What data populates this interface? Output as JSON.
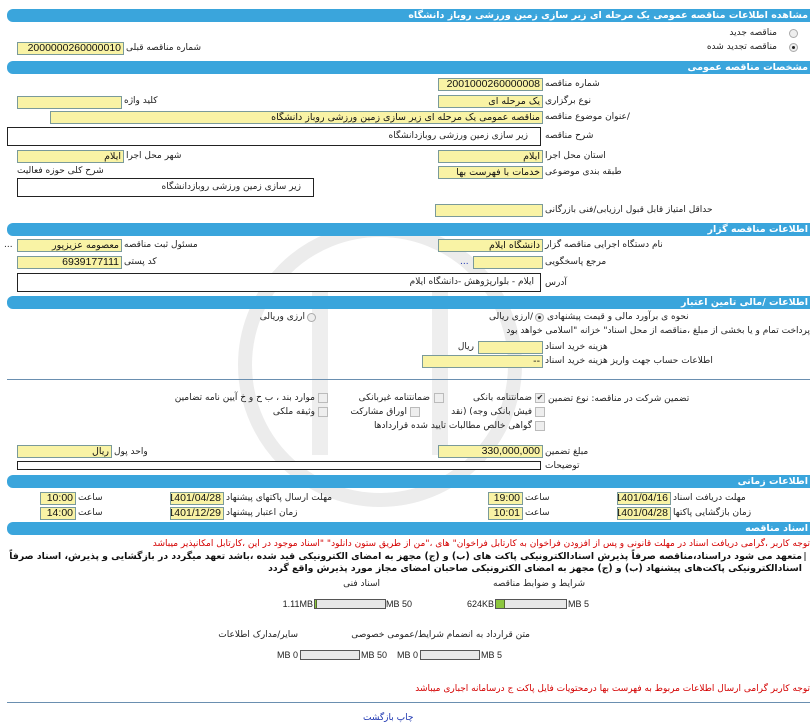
{
  "page_title": "مشاهده اطلاعات مناقصه عمومی یک مرحله ای زیر سازی زمین ورزشی روباز دانشگاه",
  "tender_type": {
    "options": [
      {
        "label": "مناقصه جدید",
        "selected": false
      },
      {
        "label": "مناقصه تجدید شده",
        "selected": true
      }
    ],
    "previous_number_label": "شماره مناقصه قبلی",
    "previous_number": "2000000260000010"
  },
  "general": {
    "header": "مشخصات مناقصه عمومی",
    "number_label": "شماره مناقصه",
    "number": "2001000260000008",
    "holding_type_label": "نوع برگزاری",
    "holding_type": "یک مرحله ای",
    "keyword_label": "کلید واژه",
    "keyword": "",
    "subject_label": "/عنوان موضوع مناقصه",
    "subject": "مناقصه عمومی یک مرحله ای  زیر سازی زمین ورزشی روباز دانشگاه",
    "description_label": "شرح مناقصه",
    "description": "زیر سازی زمین ورزشی روبازدانشگاه",
    "province_label": "استان محل اجرا",
    "province": "ایلام",
    "city_label": "شهر محل اجرا",
    "city": "ایلام",
    "category_label": "طبقه بندی موضوعی",
    "category": "خدمات با فهرست بها",
    "activity_label": "شرح کلی حوزه فعالیت",
    "activity": "زیر سازی زمین ورزشی روبازدانشگاه",
    "min_score_label": "حداقل امتیاز قابل قبول ارزیابی/فنی بازرگانی",
    "min_score": ""
  },
  "organizer": {
    "header": "اطلاعات مناقصه گزار",
    "org_label": "نام دستگاه اجرایی مناقصه گزار",
    "org": "دانشگاه ایلام",
    "responsible_label": "مسئول ثبت مناقصه",
    "responsible": "معصومه  عزیزپور",
    "reference_label": "مرجع پاسخگویی",
    "reference": "",
    "postal_label": "کد پستی",
    "postal": "6939177111",
    "address_label": "آدرس",
    "address": "ایلام - بلوارپژوهش -دانشگاه ایلام",
    "more": "..."
  },
  "finance": {
    "header": "اطلاعات /مالی تامین اعتبار",
    "method_label": "نحوه ی برآورد مالی و قیمت پیشنهادی",
    "method_options": [
      {
        "label": "/ارزی ریالی",
        "selected": true
      },
      {
        "label": "ارزی وریالی",
        "selected": false
      }
    ],
    "treasury_note": "پرداخت تمام و یا بخشی از مبلغ ،مناقصه از محل اسناد\" خزانه \"اسلامی خواهد بود",
    "doc_cost_label": "هزینه خرید اسناد",
    "doc_cost": "",
    "doc_cost_unit": "ریال",
    "account_label": "اطلاعات حساب جهت واریز هزینه خرید اسناد",
    "account": "--"
  },
  "guarantee": {
    "label": "تضمین شرکت در مناقصه:   نوع   تضمین",
    "options": [
      {
        "label": "ضمانتنامه بانکی",
        "checked": true
      },
      {
        "label": "ضمانتنامه غیربانکی",
        "checked": false
      },
      {
        "label": "موارد بند ، ب ح و خ آیین نامه تضامین",
        "checked": false
      },
      {
        "label": "فیش بانکی وجه) (نقد",
        "checked": false
      },
      {
        "label": "اوراق مشارکت",
        "checked": false
      },
      {
        "label": "وثیقه ملکی",
        "checked": false
      },
      {
        "label": "گواهی خالص مطالبات تایید شده قراردادها",
        "checked": false
      }
    ],
    "amount_label": "مبلغ تضمین",
    "amount": "330,000,000",
    "currency_label": "واحد پول",
    "currency": "ریال",
    "notes_label": "توضیحات",
    "notes": ""
  },
  "timing": {
    "header": "اطلاعات زمانی",
    "time_label": "ساعت",
    "doc_deadline_label": "مهلت دریافت اسناد",
    "doc_deadline_date": "1401/04/16",
    "doc_deadline_time": "19:00",
    "opening_label": "زمان بازگشایی پاکتها",
    "opening_date": "1401/04/28",
    "opening_time": "10:01",
    "submit_label": "مهلت    ارسال پاکتهای پیشنهاد",
    "submit_date": "1401/04/28",
    "submit_time": "10:00",
    "validity_label": "زمان    اعتبار پیشنهاد",
    "validity_date": "1401/12/29",
    "validity_time": "14:00"
  },
  "documents": {
    "header": "اسناد مناقصه",
    "notice": "توجه کاربر ،گرامی دریافت اسناد در مهلت قانونی و پس از افزودن فراخوان به کارتابل فراخوان\" های ،\"من از طریق ستون دانلود\" \"اسناد موجود در این ،کارتابل امکانپذیر میباشد",
    "commitment": "متعهد می شود دراسناد،مناقصه صرفاً پذیرش اسنادالکترونیکی پاکت های (ب) و (ج) مجهز به امضای الکترونیکی قید شده ،باشد تعهد میگردد در بازگشایی و پذیرش، اسناد صرفاً اسنادالکترونیکی پاکت‌های پیشنهاد (ب) و (ج) مجهز به امضای الکترونیکی صاحبان امضای مجاز مورد پذیرش واقع گردد",
    "files": [
      {
        "label": "شرایط و ضوابط مناقصه",
        "size": "624KB",
        "max": "5 MB",
        "fill_percent": 12
      },
      {
        "label": "اسناد فنی",
        "size": "1.11MB",
        "max": "50 MB",
        "fill_percent": 2
      },
      {
        "label": "متن قرارداد به انضمام شرایط/عمومی خصوصی",
        "size": "0 MB",
        "max": "5 MB",
        "fill_percent": 0
      },
      {
        "label": "سایر/مدارک اطلاعات",
        "size": "0 MB",
        "max": "50 MB",
        "fill_percent": 0
      }
    ],
    "price_list_notice": "توجه کاربر گرامی ارسال اطلاعات مربوط به فهرست بها درمحتویات فایل پاکت ج درسامانه اجباری میباشد"
  },
  "footer": {
    "print": "چاپ",
    "back": "بازگشت"
  },
  "colors": {
    "header": "#3aa5dc",
    "input_bg": "#f9f3a5",
    "notice": "#d40000",
    "link": "#1a33b0",
    "progress": "#8cc63f"
  }
}
